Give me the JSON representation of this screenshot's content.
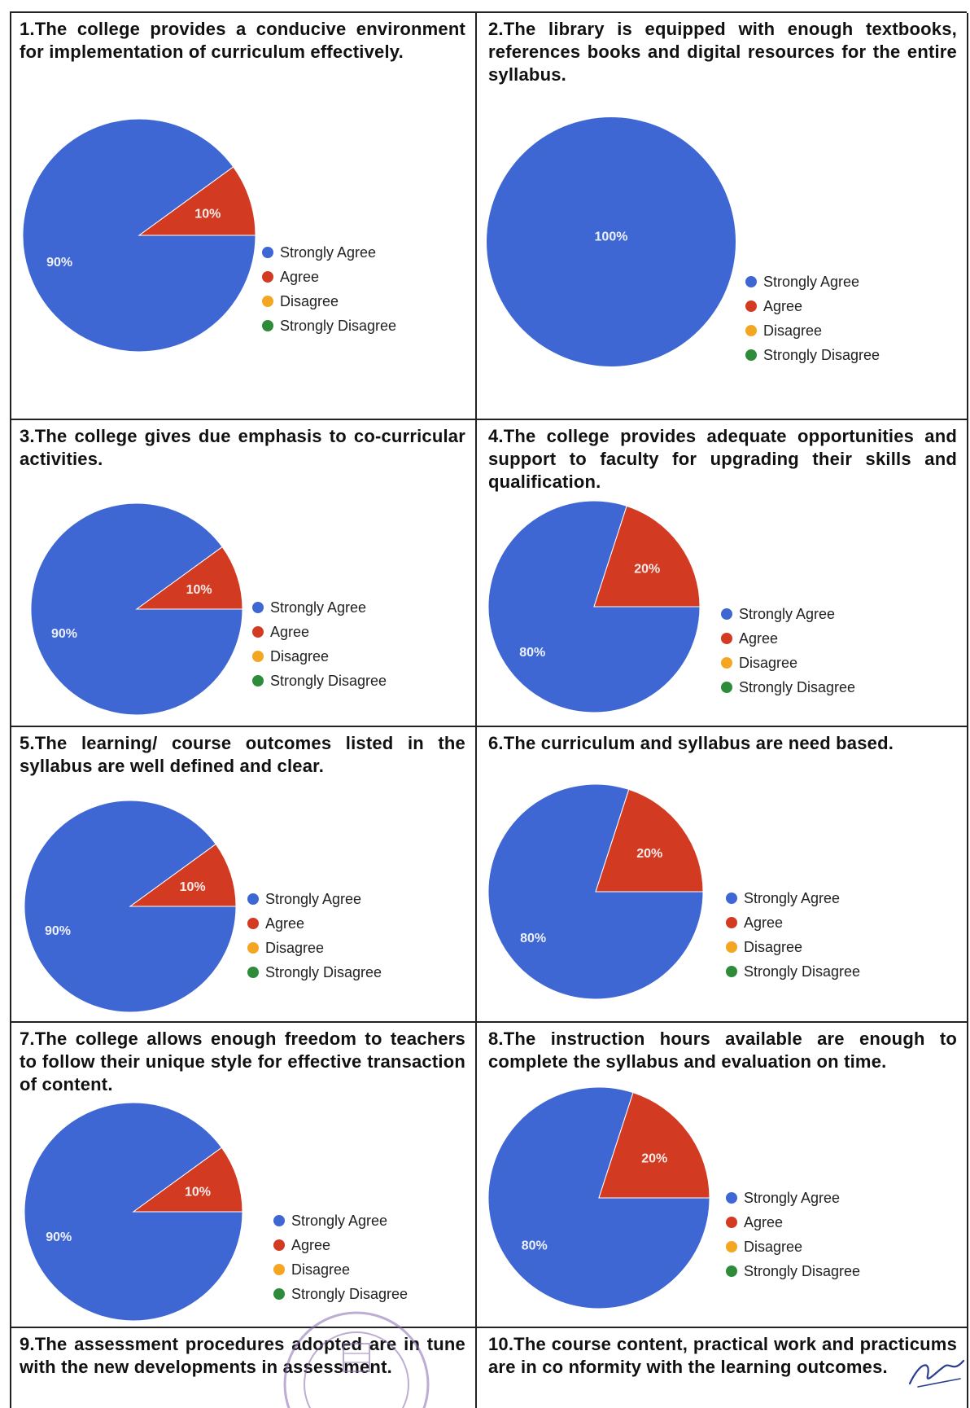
{
  "legend_labels": [
    "Strongly Agree",
    "Agree",
    "Disagree",
    "Strongly Disagree"
  ],
  "legend_colors": [
    "#3F67D3",
    "#D23A21",
    "#F4A623",
    "#2E8B3A"
  ],
  "charts": [
    {
      "question": "1.The college provides a conducive environment for implementation of curriculum effectively.",
      "chart_data": {
        "type": "pie",
        "labels": [
          "Strongly Agree",
          "Agree",
          "Disagree",
          "Strongly Disagree"
        ],
        "values": [
          90,
          10,
          0,
          0
        ],
        "slice_labels": [
          "90%",
          "10%",
          "",
          ""
        ]
      }
    },
    {
      "question": "2.The library is equipped with enough textbooks, references books and digital resources for the entire syllabus.",
      "chart_data": {
        "type": "pie",
        "labels": [
          "Strongly Agree",
          "Agree",
          "Disagree",
          "Strongly Disagree"
        ],
        "values": [
          100,
          0,
          0,
          0
        ],
        "slice_labels": [
          "100%",
          "",
          "",
          ""
        ]
      }
    },
    {
      "question": "3.The college gives due emphasis to co-curricular activities.",
      "chart_data": {
        "type": "pie",
        "labels": [
          "Strongly Agree",
          "Agree",
          "Disagree",
          "Strongly Disagree"
        ],
        "values": [
          90,
          10,
          0,
          0
        ],
        "slice_labels": [
          "90%",
          "10%",
          "",
          ""
        ]
      }
    },
    {
      "question": "4.The college provides adequate opportunities and support to faculty for upgrading their skills and qualification.",
      "chart_data": {
        "type": "pie",
        "labels": [
          "Strongly Agree",
          "Agree",
          "Disagree",
          "Strongly Disagree"
        ],
        "values": [
          80,
          20,
          0,
          0
        ],
        "slice_labels": [
          "80%",
          "20%",
          "",
          ""
        ]
      }
    },
    {
      "question": "5.The learning/ course outcomes listed in the syllabus are well defined and clear.",
      "chart_data": {
        "type": "pie",
        "labels": [
          "Strongly Agree",
          "Agree",
          "Disagree",
          "Strongly Disagree"
        ],
        "values": [
          90,
          10,
          0,
          0
        ],
        "slice_labels": [
          "90%",
          "10%",
          "",
          ""
        ]
      }
    },
    {
      "question": "6.The curriculum and syllabus are need based.",
      "chart_data": {
        "type": "pie",
        "labels": [
          "Strongly Agree",
          "Agree",
          "Disagree",
          "Strongly Disagree"
        ],
        "values": [
          80,
          20,
          0,
          0
        ],
        "slice_labels": [
          "80%",
          "20%",
          "",
          ""
        ]
      }
    },
    {
      "question": "7.The college allows enough freedom to teachers to follow their unique style for effective transaction of content.",
      "chart_data": {
        "type": "pie",
        "labels": [
          "Strongly Agree",
          "Agree",
          "Disagree",
          "Strongly Disagree"
        ],
        "values": [
          90,
          10,
          0,
          0
        ],
        "slice_labels": [
          "90%",
          "10%",
          "",
          ""
        ]
      }
    },
    {
      "question": "8.The instruction hours available are enough to complete the syllabus and evaluation on time.",
      "chart_data": {
        "type": "pie",
        "labels": [
          "Strongly Agree",
          "Agree",
          "Disagree",
          "Strongly Disagree"
        ],
        "values": [
          80,
          20,
          0,
          0
        ],
        "slice_labels": [
          "80%",
          "20%",
          "",
          ""
        ]
      }
    },
    {
      "question": "9.The assessment procedures adopted are in tune with the new developments in assessment."
    },
    {
      "question": "10.The course content, practical work and practicums are in co nformity with the learning outcomes."
    }
  ]
}
